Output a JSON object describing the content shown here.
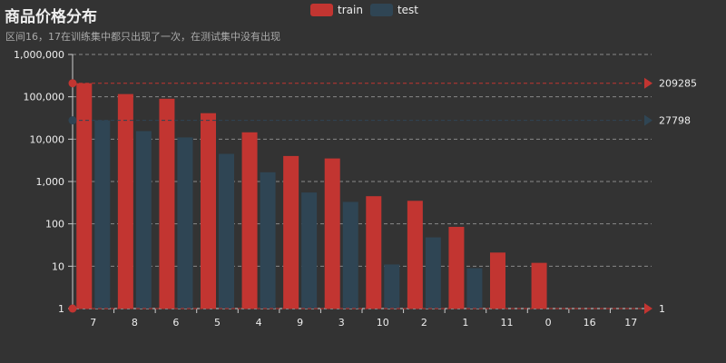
{
  "chart_data": {
    "type": "bar",
    "title": "商品价格分布",
    "subtitle": "区间16，17在训练集中都只出现了一次，在测试集中没有出现",
    "categories": [
      "7",
      "8",
      "6",
      "5",
      "4",
      "9",
      "3",
      "10",
      "2",
      "1",
      "11",
      "0",
      "16",
      "17"
    ],
    "series": [
      {
        "name": "train",
        "color": "#c23531",
        "values": [
          209285,
          116000,
          90000,
          41000,
          14500,
          4000,
          3500,
          450,
          350,
          85,
          21,
          12,
          1,
          1
        ]
      },
      {
        "name": "test",
        "color": "#2f4554",
        "values": [
          27798,
          15500,
          11000,
          4500,
          1650,
          550,
          330,
          11,
          48,
          9,
          null,
          null,
          null,
          null
        ]
      }
    ],
    "y_scale": "log",
    "ylim": [
      1,
      1000000
    ],
    "y_ticks": [
      "1",
      "10",
      "100",
      "1,000",
      "10,000",
      "100,000",
      "1,000,000"
    ],
    "grid": true,
    "legend_position": "top-center",
    "markline_labels": [
      "209285",
      "27798",
      "1"
    ]
  }
}
